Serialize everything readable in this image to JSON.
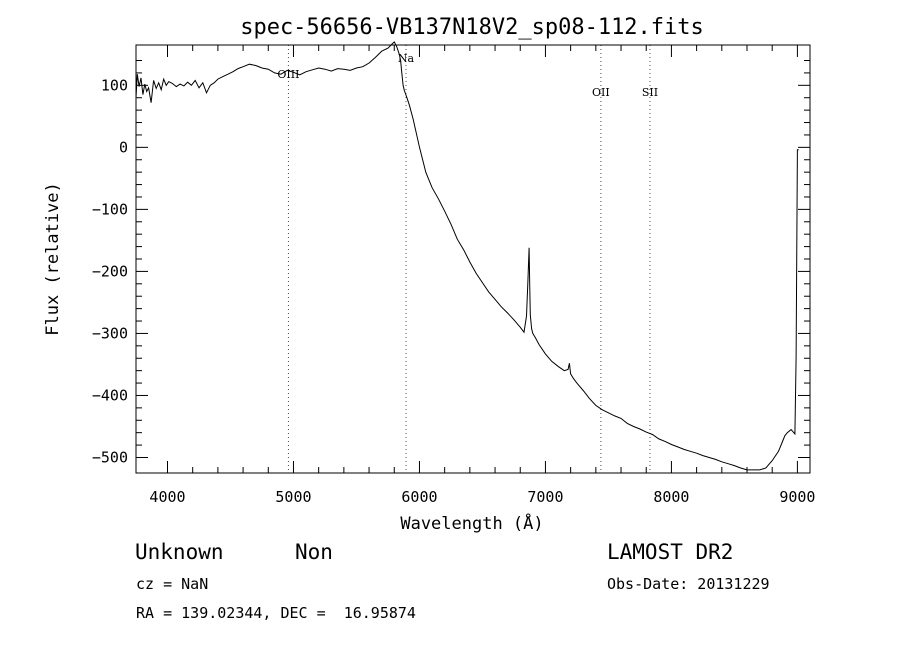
{
  "chart_data": {
    "type": "line",
    "title": "spec-56656-VB137N18V2_sp08-112.fits",
    "xlabel": "Wavelength (Å)",
    "ylabel": "Flux (relative)",
    "xlim": [
      3750,
      9100
    ],
    "ylim": [
      -525,
      165
    ],
    "xticks": [
      4000,
      5000,
      6000,
      7000,
      8000,
      9000
    ],
    "yticks": [
      100,
      0,
      -100,
      -200,
      -300,
      -400,
      -500
    ],
    "grid": false,
    "line_color": "#000000",
    "marker_color": "#ff0000",
    "lines": [
      {
        "label": "OIII",
        "x": 4960
      },
      {
        "label": "Na",
        "x": 5893
      },
      {
        "label": "OII",
        "x": 7440
      },
      {
        "label": "SII",
        "x": 7830
      }
    ],
    "series": [
      {
        "x": [
          3750,
          3760,
          3775,
          3790,
          3805,
          3820,
          3835,
          3850,
          3870,
          3890,
          3910,
          3930,
          3950,
          3970,
          3990,
          4010,
          4040,
          4070,
          4100,
          4130,
          4160,
          4190,
          4220,
          4250,
          4280,
          4310,
          4340,
          4370,
          4400,
          4440,
          4480,
          4520,
          4560,
          4600,
          4650,
          4700,
          4750,
          4800,
          4850,
          4900,
          4950,
          5000,
          5050,
          5100,
          5150,
          5200,
          5250,
          5300,
          5350,
          5400,
          5450,
          5500,
          5550,
          5600,
          5650,
          5700,
          5750,
          5780,
          5800,
          5820,
          5840,
          5850,
          5860,
          5870,
          5880,
          5890,
          5900,
          5920,
          5950,
          6000,
          6050,
          6100,
          6150,
          6200,
          6250,
          6300,
          6350,
          6400,
          6450,
          6500,
          6550,
          6600,
          6650,
          6700,
          6750,
          6800,
          6830,
          6850,
          6860,
          6870,
          6875,
          6880,
          6890,
          6900,
          6920,
          6950,
          7000,
          7050,
          7100,
          7150,
          7180,
          7190,
          7200,
          7220,
          7250,
          7300,
          7350,
          7400,
          7450,
          7500,
          7550,
          7600,
          7650,
          7700,
          7750,
          7800,
          7850,
          7900,
          7950,
          8000,
          8050,
          8100,
          8150,
          8200,
          8250,
          8300,
          8350,
          8400,
          8450,
          8500,
          8550,
          8600,
          8650,
          8700,
          8750,
          8800,
          8850,
          8880,
          8900,
          8920,
          8950,
          8980,
          8990,
          9000,
          9005,
          9010
        ],
        "y": [
          80,
          118,
          98,
          112,
          85,
          102,
          90,
          96,
          72,
          108,
          95,
          104,
          93,
          110,
          100,
          106,
          103,
          98,
          102,
          99,
          105,
          100,
          108,
          96,
          104,
          88,
          100,
          104,
          110,
          114,
          118,
          122,
          127,
          130,
          134,
          132,
          128,
          126,
          120,
          118,
          124,
          121,
          117,
          122,
          125,
          128,
          126,
          123,
          127,
          126,
          124,
          128,
          130,
          136,
          145,
          155,
          160,
          166,
          170,
          162,
          150,
          140,
          120,
          100,
          92,
          86,
          80,
          68,
          45,
          0,
          -40,
          -65,
          -83,
          -103,
          -124,
          -148,
          -165,
          -185,
          -203,
          -218,
          -233,
          -245,
          -257,
          -267,
          -278,
          -290,
          -298,
          -272,
          -220,
          -162,
          -220,
          -270,
          -292,
          -300,
          -307,
          -318,
          -333,
          -345,
          -353,
          -360,
          -358,
          -348,
          -365,
          -372,
          -380,
          -392,
          -405,
          -416,
          -423,
          -428,
          -433,
          -437,
          -445,
          -450,
          -454,
          -459,
          -463,
          -470,
          -474,
          -479,
          -483,
          -487,
          -490,
          -493,
          -497,
          -500,
          -503,
          -507,
          -510,
          -513,
          -517,
          -520,
          -520,
          -520,
          -517,
          -505,
          -490,
          -475,
          -465,
          -460,
          -455,
          -462,
          -340,
          -4,
          -4,
          -4
        ]
      }
    ]
  },
  "footer": {
    "object_class": "Unknown",
    "subclass": "Non",
    "survey": "LAMOST DR2",
    "redshift": "cz = NaN",
    "obs_date": "Obs-Date: 20131229",
    "coords": "RA = 139.02344, DEC =  16.95874"
  }
}
